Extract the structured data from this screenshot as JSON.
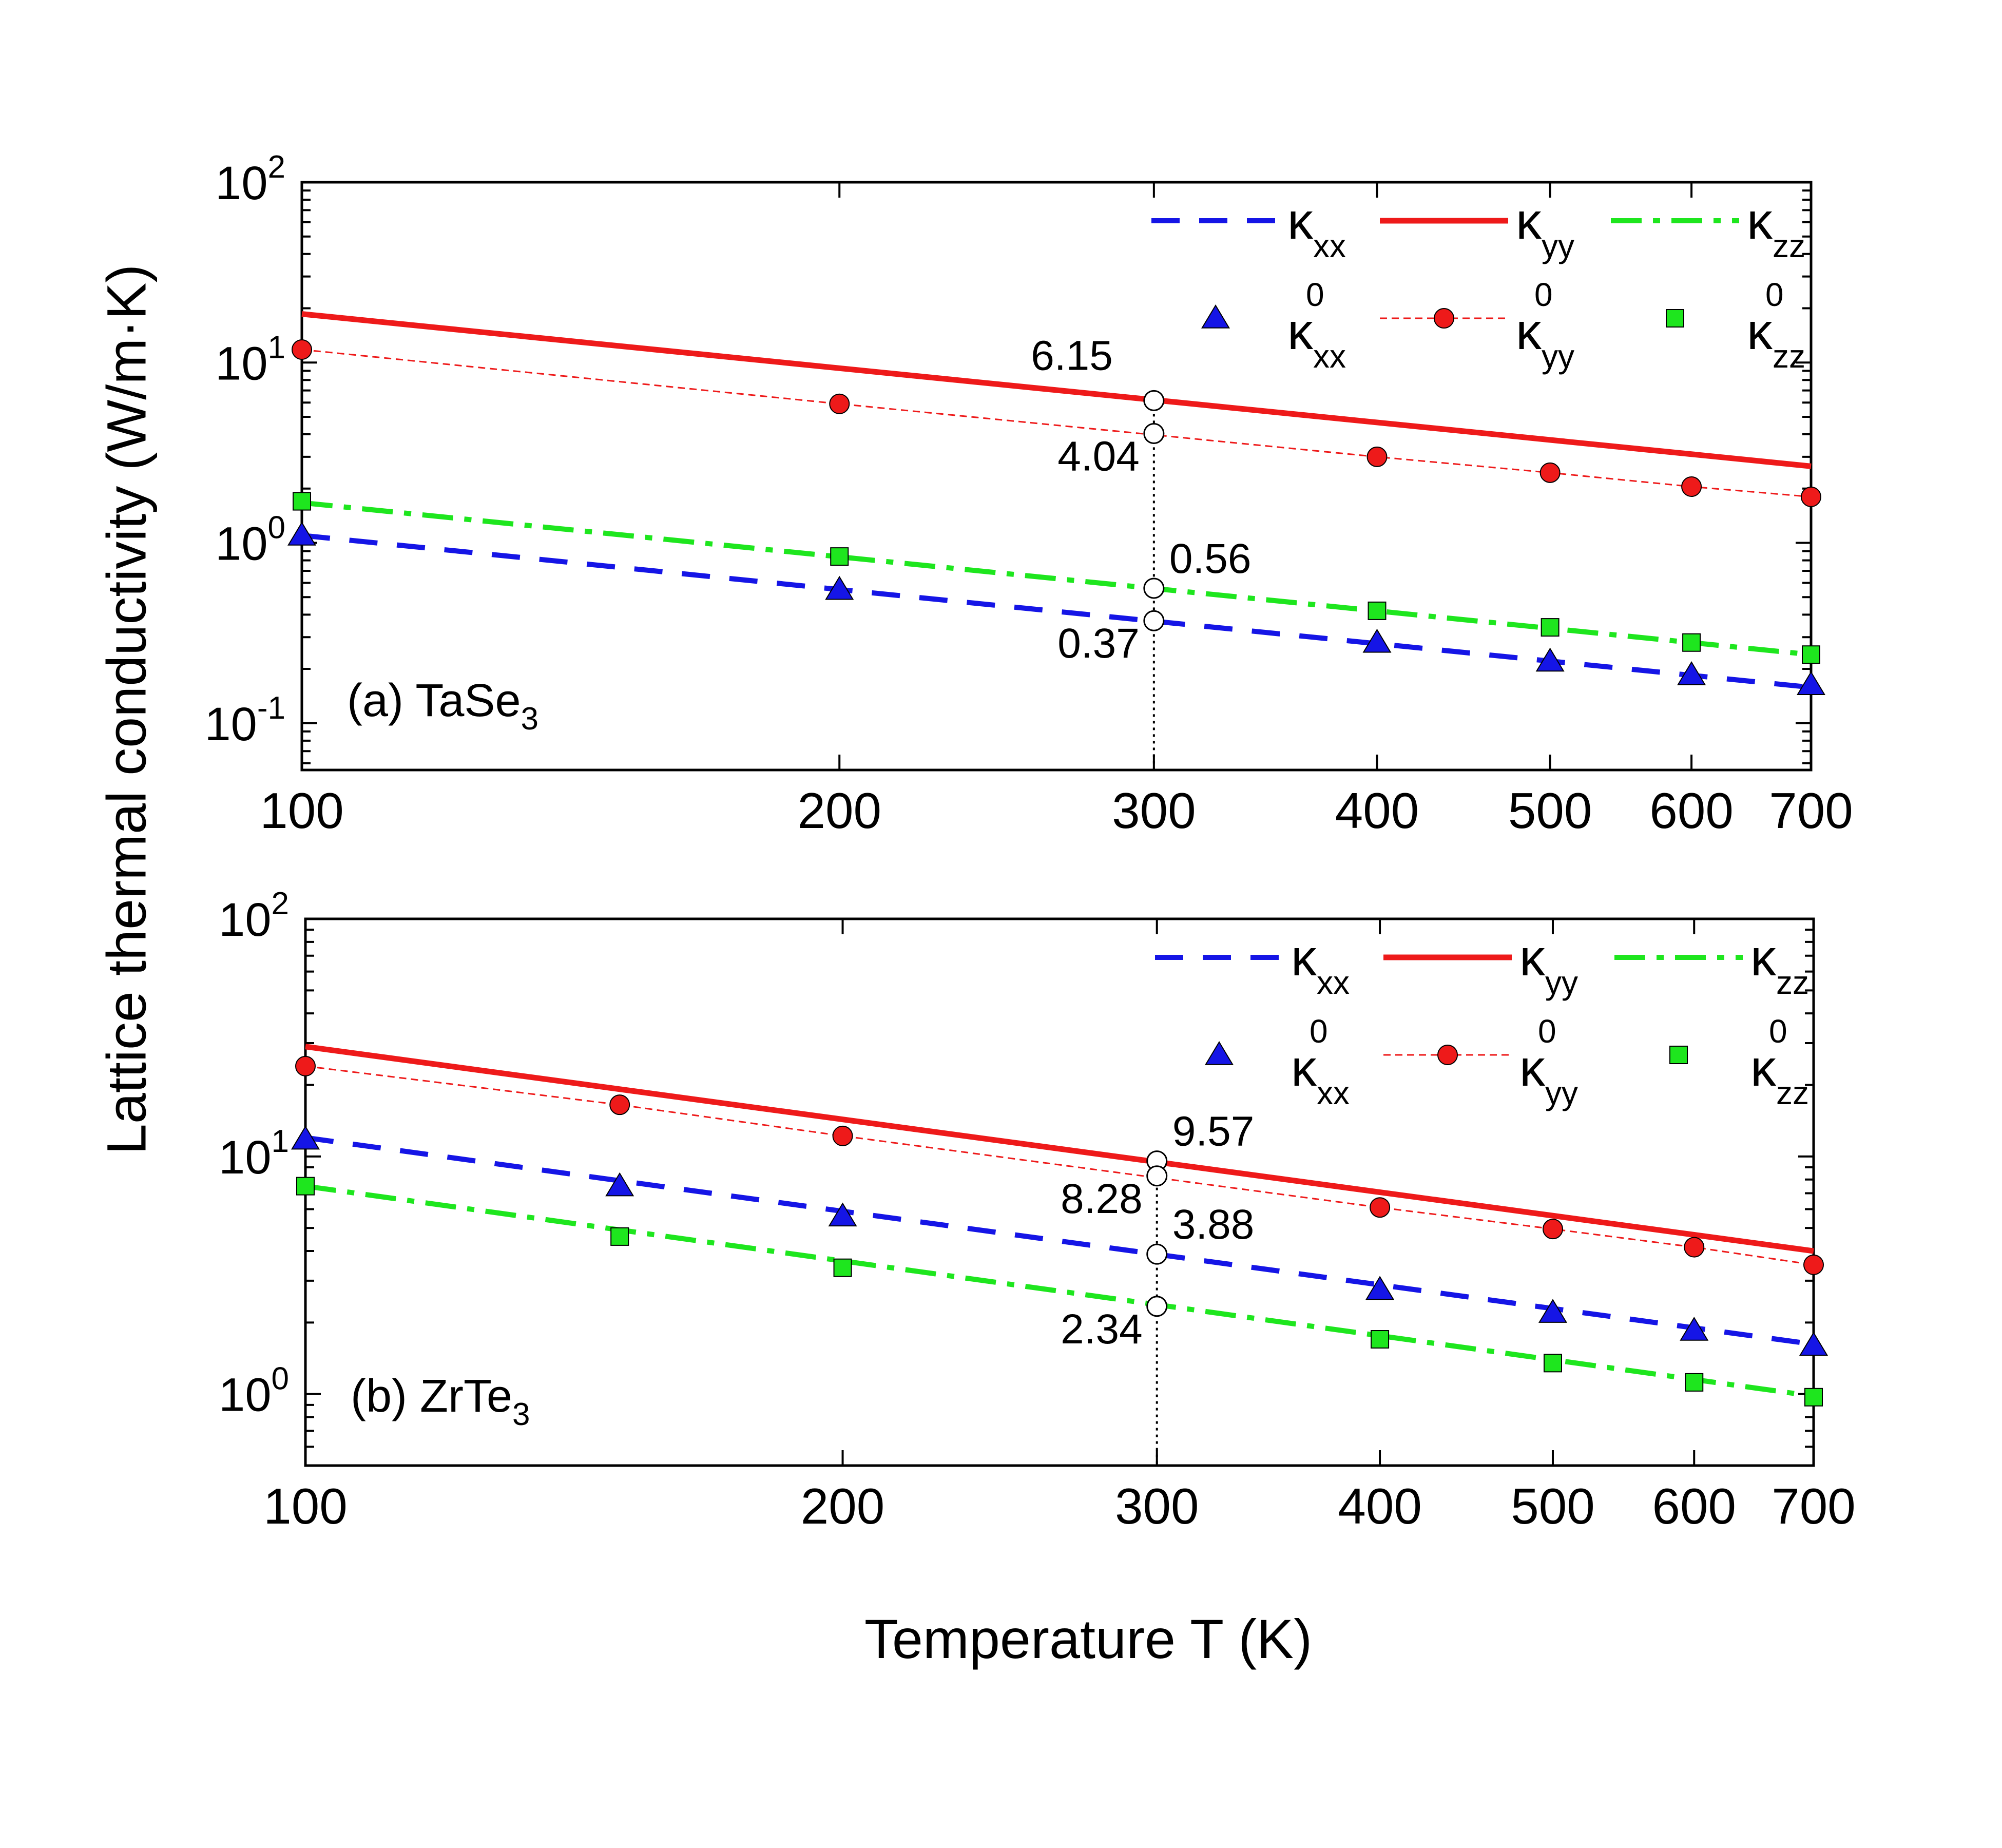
{
  "figure": {
    "ylabel": "Lattice thermal conductivity (W/m·K)",
    "xlabel": "Temperature T (K)"
  },
  "colors": {
    "xx": "#1515e6",
    "yy": "#ee1a1a",
    "zz": "#1ee61e",
    "axis": "#000000"
  },
  "chart_data": [
    {
      "type": "line",
      "panel": "a",
      "material_prefix": "(a) TaSe",
      "material_sub": "3",
      "xscale": "log",
      "yscale": "log",
      "xlim": [
        100,
        700
      ],
      "ylim": [
        0.055,
        100
      ],
      "xticks": [
        100,
        200,
        300,
        400,
        500,
        600,
        700
      ],
      "xtick_labels": [
        "100",
        "200",
        "300",
        "400",
        "500",
        "600",
        "700"
      ],
      "yticks": [
        0.1,
        1,
        10,
        100
      ],
      "ytick_labels": [
        {
          "base": "10",
          "exp": "-1"
        },
        {
          "base": "10",
          "exp": "0"
        },
        {
          "base": "10",
          "exp": "1"
        },
        {
          "base": "10",
          "exp": "2"
        }
      ],
      "legend": [
        {
          "key": "xx",
          "sym": "κ",
          "sub": "xx",
          "sup": "",
          "style": "dash"
        },
        {
          "key": "yy",
          "sym": "κ",
          "sub": "yy",
          "sup": "",
          "style": "solid"
        },
        {
          "key": "zz",
          "sym": "κ",
          "sub": "zz",
          "sup": "",
          "style": "dashdot"
        },
        {
          "key": "xx0",
          "sym": "κ",
          "sub": "xx",
          "sup": "0",
          "style": "triangle"
        },
        {
          "key": "yy0",
          "sym": "κ",
          "sub": "yy",
          "sup": "0",
          "style": "circle"
        },
        {
          "key": "zz0",
          "sym": "κ",
          "sub": "zz",
          "sup": "0",
          "style": "square"
        }
      ],
      "lines": [
        {
          "key": "xx",
          "name": "κxx",
          "x": [
            100,
            700
          ],
          "y": [
            1.1,
            0.158
          ]
        },
        {
          "key": "yy",
          "name": "κyy",
          "x": [
            100,
            700
          ],
          "y": [
            18.6,
            2.66
          ]
        },
        {
          "key": "zz",
          "name": "κzz",
          "x": [
            100,
            700
          ],
          "y": [
            1.67,
            0.24
          ]
        }
      ],
      "points": [
        {
          "key": "xx0",
          "name": "κxx0",
          "x": [
            100,
            200,
            400,
            500,
            600,
            700
          ],
          "y": [
            1.1,
            0.55,
            0.28,
            0.22,
            0.185,
            0.163
          ]
        },
        {
          "key": "yy0",
          "name": "κyy0",
          "x": [
            100,
            200,
            400,
            500,
            600,
            700
          ],
          "y": [
            11.8,
            5.9,
            3.0,
            2.45,
            2.05,
            1.8
          ]
        },
        {
          "key": "zz0",
          "name": "κzz0",
          "x": [
            100,
            200,
            400,
            500,
            600,
            700
          ],
          "y": [
            1.7,
            0.84,
            0.42,
            0.34,
            0.28,
            0.24
          ]
        }
      ],
      "vline": {
        "x": 300
      },
      "annotations": [
        {
          "text": "6.15",
          "x": 300,
          "y": 6.15,
          "pos": "upper-left"
        },
        {
          "text": "4.04",
          "x": 300,
          "y": 4.04,
          "pos": "lower-left"
        },
        {
          "text": "0.56",
          "x": 300,
          "y": 0.56,
          "pos": "upper-right"
        },
        {
          "text": "0.37",
          "x": 300,
          "y": 0.37,
          "pos": "lower-left"
        }
      ]
    },
    {
      "type": "line",
      "panel": "b",
      "material_prefix": "(b) ZrTe",
      "material_sub": "3",
      "xscale": "log",
      "yscale": "log",
      "xlim": [
        100,
        700
      ],
      "ylim": [
        0.5,
        100
      ],
      "xticks": [
        100,
        200,
        300,
        400,
        500,
        600,
        700
      ],
      "xtick_labels": [
        "100",
        "200",
        "300",
        "400",
        "500",
        "600",
        "700"
      ],
      "yticks": [
        1,
        10,
        100
      ],
      "ytick_labels": [
        {
          "base": "10",
          "exp": "0"
        },
        {
          "base": "10",
          "exp": "1"
        },
        {
          "base": "10",
          "exp": "2"
        }
      ],
      "legend": [
        {
          "key": "xx",
          "sym": "κ",
          "sub": "xx",
          "sup": "",
          "style": "dash"
        },
        {
          "key": "yy",
          "sym": "κ",
          "sub": "yy",
          "sup": "",
          "style": "solid"
        },
        {
          "key": "zz",
          "sym": "κ",
          "sub": "zz",
          "sup": "",
          "style": "dashdot"
        },
        {
          "key": "xx0",
          "sym": "κ",
          "sub": "xx",
          "sup": "0",
          "style": "triangle"
        },
        {
          "key": "yy0",
          "sym": "κ",
          "sub": "yy",
          "sup": "0",
          "style": "circle"
        },
        {
          "key": "zz0",
          "sym": "κ",
          "sub": "zz",
          "sup": "0",
          "style": "square"
        }
      ],
      "lines": [
        {
          "key": "xx",
          "name": "κxx",
          "x": [
            100,
            700
          ],
          "y": [
            12.0,
            1.62
          ]
        },
        {
          "key": "yy",
          "name": "κyy",
          "x": [
            100,
            700
          ],
          "y": [
            29.0,
            4.0
          ]
        },
        {
          "key": "zz",
          "name": "κzz",
          "x": [
            100,
            700
          ],
          "y": [
            7.5,
            0.98
          ]
        }
      ],
      "points": [
        {
          "key": "xx0",
          "name": "κxx0",
          "x": [
            100,
            150,
            200,
            400,
            500,
            600,
            700
          ],
          "y": [
            11.8,
            7.5,
            5.6,
            2.75,
            2.2,
            1.85,
            1.6
          ]
        },
        {
          "key": "yy0",
          "name": "κyy0",
          "x": [
            100,
            150,
            200,
            400,
            500,
            600,
            700
          ],
          "y": [
            24.0,
            16.5,
            12.2,
            6.1,
            4.95,
            4.15,
            3.5
          ]
        },
        {
          "key": "zz0",
          "name": "κzz0",
          "x": [
            100,
            150,
            200,
            400,
            500,
            600,
            700
          ],
          "y": [
            7.5,
            4.6,
            3.4,
            1.7,
            1.35,
            1.12,
            0.97
          ]
        }
      ],
      "vline": {
        "x": 300
      },
      "annotations": [
        {
          "text": "9.57",
          "x": 300,
          "y": 9.57,
          "pos": "upper-right"
        },
        {
          "text": "8.28",
          "x": 300,
          "y": 8.28,
          "pos": "lower-left"
        },
        {
          "text": "3.88",
          "x": 300,
          "y": 3.88,
          "pos": "upper-right"
        },
        {
          "text": "2.34",
          "x": 300,
          "y": 2.34,
          "pos": "lower-left"
        }
      ]
    }
  ]
}
